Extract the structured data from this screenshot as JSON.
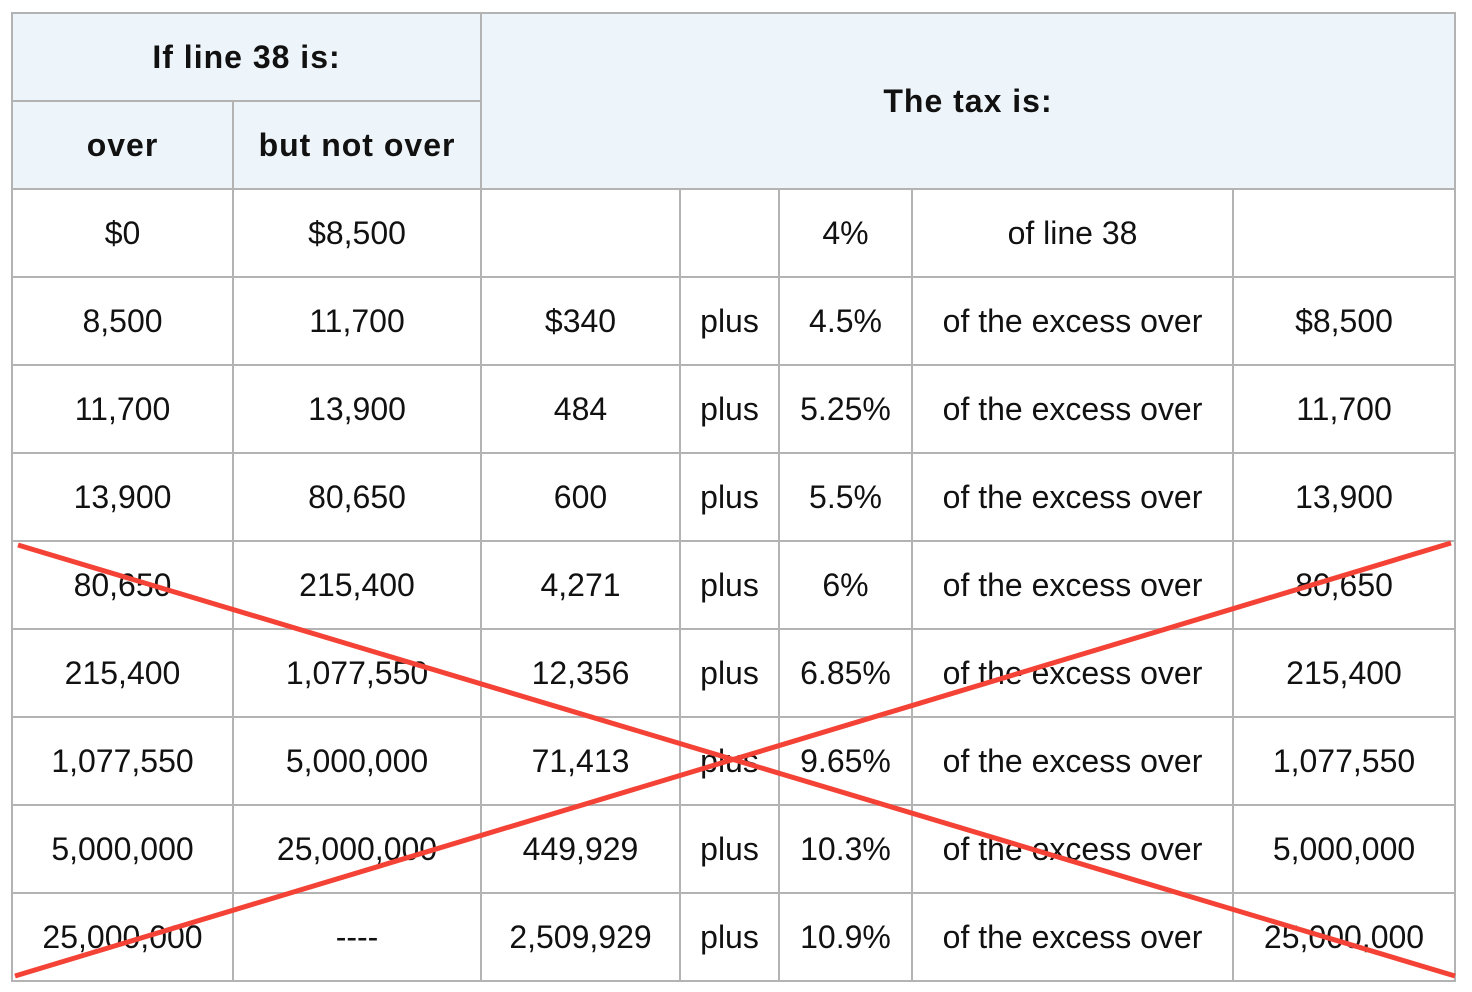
{
  "table": {
    "header": {
      "if_line": "If line 38 is:",
      "over": "over",
      "but_not_over": "but not over",
      "tax_is": "The tax is:"
    },
    "rows": [
      [
        "$0",
        "$8,500",
        null,
        null,
        "4%",
        "of line 38",
        null
      ],
      [
        "8,500",
        "11,700",
        "$340",
        "plus",
        "4.5%",
        "of the excess over",
        "$8,500"
      ],
      [
        "11,700",
        "13,900",
        "484",
        "plus",
        "5.25%",
        "of the excess over",
        "11,700"
      ],
      [
        "13,900",
        "80,650",
        "600",
        "plus",
        "5.5%",
        "of the excess over",
        "13,900"
      ],
      [
        "80,650",
        "215,400",
        "4,271",
        "plus",
        "6%",
        "of the excess over",
        "80,650"
      ],
      [
        "215,400",
        "1,077,550",
        "12,356",
        "plus",
        "6.85%",
        "of the excess over",
        "215,400"
      ],
      [
        "1,077,550",
        "5,000,000",
        "71,413",
        "plus",
        "9.65%",
        "of the excess over",
        "1,077,550"
      ],
      [
        "5,000,000",
        "25,000,000",
        "449,929",
        "plus",
        "10.3%",
        "of the excess over",
        "5,000,000"
      ],
      [
        "25,000,000",
        "----",
        "2,509,929",
        "plus",
        "10.9%",
        "of the excess over",
        "25,000,000"
      ]
    ]
  }
}
